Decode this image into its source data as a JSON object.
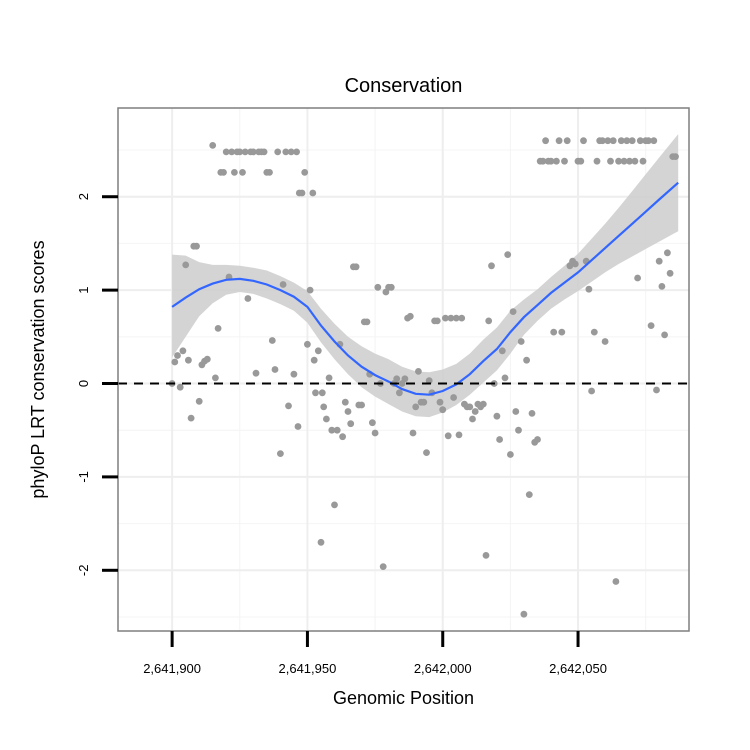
{
  "chart_data": {
    "type": "scatter",
    "title": "Conservation",
    "xlabel": "Genomic Position",
    "ylabel": "phyloP LRT conservation scores",
    "xlim": [
      2641880,
      2642091
    ],
    "ylim": [
      -2.65,
      2.95
    ],
    "x_ticks": [
      2641900,
      2641950,
      2642000,
      2642050
    ],
    "x_tick_labels": [
      "2,641,900",
      "2,641,950",
      "2,642,000",
      "2,642,050"
    ],
    "y_ticks": [
      -2,
      -1,
      0,
      1,
      2
    ],
    "y_tick_labels": [
      "-2",
      "-1",
      "0",
      "1",
      "2"
    ],
    "reference_line": {
      "y": 0,
      "style": "dashed",
      "color": "#000000"
    },
    "grid": true,
    "colors": {
      "points": "#999999",
      "smooth": "#3366ff",
      "band": "#cccccc",
      "grid": "#eeeeee",
      "frame": "#7f7f7f"
    },
    "smooth": {
      "x": [
        2641900,
        2641905,
        2641910,
        2641915,
        2641920,
        2641925,
        2641930,
        2641935,
        2641940,
        2641945,
        2641950,
        2641955,
        2641960,
        2641965,
        2641970,
        2641975,
        2641980,
        2641985,
        2641990,
        2641995,
        2642000,
        2642005,
        2642010,
        2642015,
        2642020,
        2642025,
        2642030,
        2642035,
        2642040,
        2642045,
        2642050,
        2642055,
        2642060,
        2642065,
        2642070,
        2642075,
        2642080,
        2642085,
        2642087
      ],
      "y": [
        0.82,
        0.92,
        1.01,
        1.07,
        1.11,
        1.12,
        1.1,
        1.06,
        1.0,
        0.93,
        0.82,
        0.62,
        0.45,
        0.3,
        0.18,
        0.09,
        0.02,
        -0.06,
        -0.11,
        -0.12,
        -0.08,
        -0.01,
        0.1,
        0.24,
        0.37,
        0.55,
        0.71,
        0.84,
        0.97,
        1.08,
        1.19,
        1.32,
        1.45,
        1.58,
        1.71,
        1.84,
        1.97,
        2.1,
        2.15
      ],
      "lower": [
        0.28,
        0.5,
        0.72,
        0.86,
        0.95,
        0.98,
        0.96,
        0.91,
        0.85,
        0.78,
        0.65,
        0.44,
        0.26,
        0.1,
        -0.04,
        -0.14,
        -0.22,
        -0.3,
        -0.35,
        -0.36,
        -0.31,
        -0.23,
        -0.12,
        0.01,
        0.14,
        0.32,
        0.52,
        0.67,
        0.8,
        0.9,
        0.99,
        1.09,
        1.19,
        1.28,
        1.36,
        1.44,
        1.52,
        1.6,
        1.63
      ],
      "upper": [
        1.38,
        1.37,
        1.3,
        1.27,
        1.27,
        1.26,
        1.24,
        1.21,
        1.15,
        1.08,
        0.99,
        0.8,
        0.64,
        0.5,
        0.4,
        0.32,
        0.26,
        0.18,
        0.13,
        0.12,
        0.15,
        0.21,
        0.32,
        0.47,
        0.6,
        0.78,
        0.9,
        1.01,
        1.14,
        1.26,
        1.39,
        1.55,
        1.71,
        1.88,
        2.06,
        2.24,
        2.42,
        2.6,
        2.67
      ]
    },
    "points": [
      [
        2641900,
        0.0
      ],
      [
        2641901,
        0.23
      ],
      [
        2641902,
        0.3
      ],
      [
        2641903,
        -0.04
      ],
      [
        2641904,
        0.35
      ],
      [
        2641905,
        1.27
      ],
      [
        2641906,
        0.25
      ],
      [
        2641907,
        -0.37
      ],
      [
        2641908,
        1.47
      ],
      [
        2641909,
        1.47
      ],
      [
        2641910,
        -0.19
      ],
      [
        2641911,
        0.2
      ],
      [
        2641912,
        0.24
      ],
      [
        2641913,
        0.26
      ],
      [
        2641915,
        2.55
      ],
      [
        2641916,
        0.06
      ],
      [
        2641917,
        0.59
      ],
      [
        2641918,
        2.26
      ],
      [
        2641919,
        2.26
      ],
      [
        2641920,
        2.48
      ],
      [
        2641921,
        1.14
      ],
      [
        2641922,
        2.48
      ],
      [
        2641923,
        2.26
      ],
      [
        2641924,
        2.48
      ],
      [
        2641925,
        2.48
      ],
      [
        2641926,
        2.26
      ],
      [
        2641927,
        2.48
      ],
      [
        2641928,
        0.91
      ],
      [
        2641929,
        2.48
      ],
      [
        2641930,
        2.48
      ],
      [
        2641931,
        0.11
      ],
      [
        2641932,
        2.48
      ],
      [
        2641933,
        2.48
      ],
      [
        2641934,
        2.48
      ],
      [
        2641935,
        2.26
      ],
      [
        2641936,
        2.26
      ],
      [
        2641937,
        0.46
      ],
      [
        2641938,
        0.15
      ],
      [
        2641939,
        2.48
      ],
      [
        2641940,
        -0.75
      ],
      [
        2641941,
        1.06
      ],
      [
        2641942,
        2.48
      ],
      [
        2641943,
        -0.24
      ],
      [
        2641944,
        2.48
      ],
      [
        2641945,
        0.1
      ],
      [
        2641946,
        2.48
      ],
      [
        2641946.5,
        -0.46
      ],
      [
        2641947,
        2.04
      ],
      [
        2641948,
        2.04
      ],
      [
        2641949,
        2.26
      ],
      [
        2641950,
        0.42
      ],
      [
        2641951,
        1.0
      ],
      [
        2641952,
        2.04
      ],
      [
        2641952.5,
        0.25
      ],
      [
        2641953,
        -0.1
      ],
      [
        2641954,
        0.35
      ],
      [
        2641955,
        -1.7
      ],
      [
        2641955.5,
        -0.1
      ],
      [
        2641956,
        -0.25
      ],
      [
        2641957,
        -0.38
      ],
      [
        2641958,
        0.06
      ],
      [
        2641959,
        -0.5
      ],
      [
        2641960,
        -1.3
      ],
      [
        2641961,
        -0.5
      ],
      [
        2641962,
        0.42
      ],
      [
        2641963,
        -0.57
      ],
      [
        2641964,
        -0.2
      ],
      [
        2641965,
        -0.3
      ],
      [
        2641966,
        -0.43
      ],
      [
        2641967,
        1.25
      ],
      [
        2641968,
        1.25
      ],
      [
        2641969,
        -0.23
      ],
      [
        2641970,
        -0.23
      ],
      [
        2641971,
        0.66
      ],
      [
        2641972,
        0.66
      ],
      [
        2641973,
        0.1
      ],
      [
        2641974,
        -0.42
      ],
      [
        2641975,
        -0.53
      ],
      [
        2641976,
        1.03
      ],
      [
        2641977,
        0.0
      ],
      [
        2641978,
        -1.96
      ],
      [
        2641979,
        0.98
      ],
      [
        2641980,
        1.03
      ],
      [
        2641981,
        1.03
      ],
      [
        2641982,
        0.0
      ],
      [
        2641983,
        0.05
      ],
      [
        2641984,
        -0.1
      ],
      [
        2641985,
        0.0
      ],
      [
        2641986,
        0.05
      ],
      [
        2641987,
        0.7
      ],
      [
        2641988,
        0.72
      ],
      [
        2641989,
        -0.53
      ],
      [
        2641990,
        -0.25
      ],
      [
        2641991,
        0.13
      ],
      [
        2641992,
        -0.2
      ],
      [
        2641993,
        -0.2
      ],
      [
        2641994,
        -0.74
      ],
      [
        2641995,
        0.03
      ],
      [
        2641996,
        -0.1
      ],
      [
        2641997,
        0.67
      ],
      [
        2641998,
        0.67
      ],
      [
        2641999,
        -0.2
      ],
      [
        2642000,
        -0.28
      ],
      [
        2642001,
        0.7
      ],
      [
        2642002,
        -0.56
      ],
      [
        2642003,
        0.7
      ],
      [
        2642004,
        -0.15
      ],
      [
        2642005,
        0.7
      ],
      [
        2642006,
        -0.55
      ],
      [
        2642007,
        0.7
      ],
      [
        2642008,
        -0.22
      ],
      [
        2642009,
        -0.25
      ],
      [
        2642010,
        -0.25
      ],
      [
        2642011,
        -0.38
      ],
      [
        2642012,
        -0.3
      ],
      [
        2642013,
        -0.22
      ],
      [
        2642014,
        -0.25
      ],
      [
        2642015,
        -0.22
      ],
      [
        2642016,
        -1.84
      ],
      [
        2642017,
        0.67
      ],
      [
        2642018,
        1.26
      ],
      [
        2642019,
        0.0
      ],
      [
        2642020,
        -0.35
      ],
      [
        2642021,
        -0.6
      ],
      [
        2642022,
        0.35
      ],
      [
        2642023,
        0.06
      ],
      [
        2642024,
        1.38
      ],
      [
        2642025,
        -0.76
      ],
      [
        2642026,
        0.77
      ],
      [
        2642027,
        -0.3
      ],
      [
        2642028,
        -0.5
      ],
      [
        2642029,
        0.45
      ],
      [
        2642030,
        -2.47
      ],
      [
        2642031,
        0.25
      ],
      [
        2642032,
        -1.19
      ],
      [
        2642033,
        -0.32
      ],
      [
        2642034,
        -0.63
      ],
      [
        2642035,
        -0.6
      ],
      [
        2642036,
        2.38
      ],
      [
        2642037,
        2.38
      ],
      [
        2642038,
        2.6
      ],
      [
        2642039,
        2.38
      ],
      [
        2642040,
        2.38
      ],
      [
        2642041,
        0.55
      ],
      [
        2642042,
        2.38
      ],
      [
        2642043,
        2.6
      ],
      [
        2642044,
        0.55
      ],
      [
        2642045,
        2.38
      ],
      [
        2642046,
        2.6
      ],
      [
        2642047,
        1.26
      ],
      [
        2642048,
        1.31
      ],
      [
        2642049,
        1.28
      ],
      [
        2642050,
        2.38
      ],
      [
        2642051,
        2.38
      ],
      [
        2642052,
        2.6
      ],
      [
        2642053,
        1.31
      ],
      [
        2642054,
        1.01
      ],
      [
        2642055,
        -0.08
      ],
      [
        2642056,
        0.55
      ],
      [
        2642057,
        2.38
      ],
      [
        2642058,
        2.6
      ],
      [
        2642059,
        2.6
      ],
      [
        2642060,
        0.45
      ],
      [
        2642061,
        2.6
      ],
      [
        2642062,
        2.38
      ],
      [
        2642063,
        2.6
      ],
      [
        2642064,
        -2.12
      ],
      [
        2642065,
        2.38
      ],
      [
        2642066,
        2.6
      ],
      [
        2642067,
        2.38
      ],
      [
        2642068,
        2.6
      ],
      [
        2642069,
        2.38
      ],
      [
        2642070,
        2.6
      ],
      [
        2642071,
        2.38
      ],
      [
        2642072,
        1.13
      ],
      [
        2642073,
        2.6
      ],
      [
        2642074,
        2.38
      ],
      [
        2642075,
        2.6
      ],
      [
        2642076,
        2.6
      ],
      [
        2642077,
        0.62
      ],
      [
        2642078,
        2.6
      ],
      [
        2642079,
        -0.07
      ],
      [
        2642080,
        1.31
      ],
      [
        2642081,
        1.04
      ],
      [
        2642082,
        0.52
      ],
      [
        2642083,
        1.4
      ],
      [
        2642084,
        1.18
      ],
      [
        2642085,
        2.43
      ],
      [
        2642086,
        2.43
      ]
    ]
  }
}
